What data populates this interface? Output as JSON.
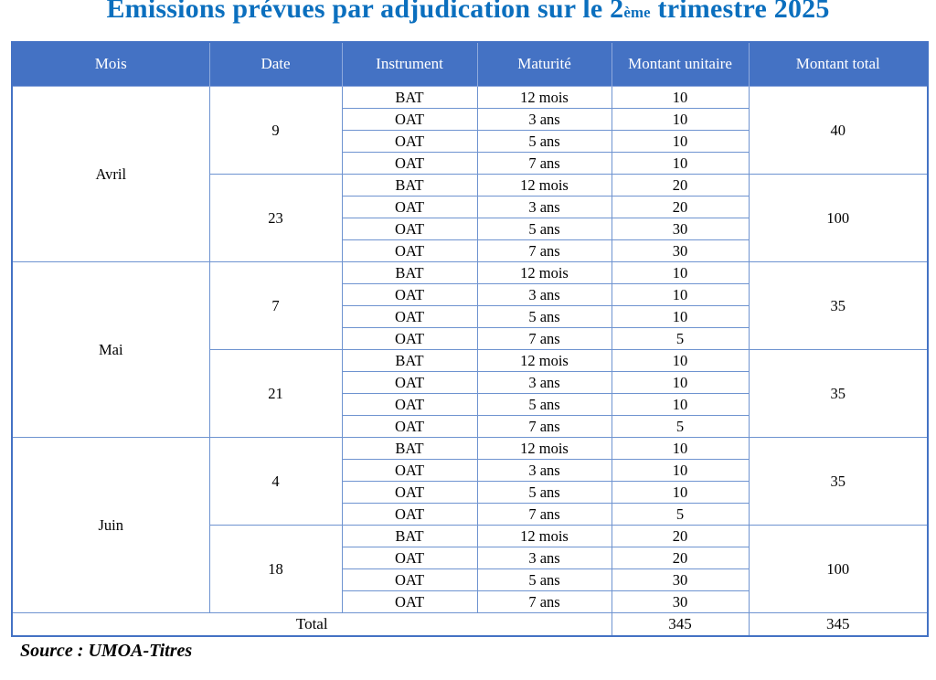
{
  "title": {
    "prefix": "Émissions prévues par adjudication sur le 2",
    "ordinal": "ème",
    "suffix": " trimestre 2025"
  },
  "table": {
    "headers": [
      "Mois",
      "Date",
      "Instrument",
      "Maturité",
      "Montant unitaire",
      "Montant total"
    ],
    "months": [
      {
        "name": "Avril",
        "auctions": [
          {
            "date": "9",
            "total": "40",
            "lines": [
              {
                "instrument": "BAT",
                "maturity": "12 mois",
                "unit_amount": "10"
              },
              {
                "instrument": "OAT",
                "maturity": "3 ans",
                "unit_amount": "10"
              },
              {
                "instrument": "OAT",
                "maturity": "5 ans",
                "unit_amount": "10"
              },
              {
                "instrument": "OAT",
                "maturity": "7 ans",
                "unit_amount": "10"
              }
            ]
          },
          {
            "date": "23",
            "total": "100",
            "lines": [
              {
                "instrument": "BAT",
                "maturity": "12 mois",
                "unit_amount": "20"
              },
              {
                "instrument": "OAT",
                "maturity": "3 ans",
                "unit_amount": "20"
              },
              {
                "instrument": "OAT",
                "maturity": "5 ans",
                "unit_amount": "30"
              },
              {
                "instrument": "OAT",
                "maturity": "7 ans",
                "unit_amount": "30"
              }
            ]
          }
        ]
      },
      {
        "name": "Mai",
        "auctions": [
          {
            "date": "7",
            "total": "35",
            "lines": [
              {
                "instrument": "BAT",
                "maturity": "12 mois",
                "unit_amount": "10"
              },
              {
                "instrument": "OAT",
                "maturity": "3 ans",
                "unit_amount": "10"
              },
              {
                "instrument": "OAT",
                "maturity": "5 ans",
                "unit_amount": "10"
              },
              {
                "instrument": "OAT",
                "maturity": "7 ans",
                "unit_amount": "5"
              }
            ]
          },
          {
            "date": "21",
            "total": "35",
            "lines": [
              {
                "instrument": "BAT",
                "maturity": "12 mois",
                "unit_amount": "10"
              },
              {
                "instrument": "OAT",
                "maturity": "3 ans",
                "unit_amount": "10"
              },
              {
                "instrument": "OAT",
                "maturity": "5 ans",
                "unit_amount": "10"
              },
              {
                "instrument": "OAT",
                "maturity": "7 ans",
                "unit_amount": "5"
              }
            ]
          }
        ]
      },
      {
        "name": "Juin",
        "auctions": [
          {
            "date": "4",
            "total": "35",
            "lines": [
              {
                "instrument": "BAT",
                "maturity": "12 mois",
                "unit_amount": "10"
              },
              {
                "instrument": "OAT",
                "maturity": "3 ans",
                "unit_amount": "10"
              },
              {
                "instrument": "OAT",
                "maturity": "5 ans",
                "unit_amount": "10"
              },
              {
                "instrument": "OAT",
                "maturity": "7 ans",
                "unit_amount": "5"
              }
            ]
          },
          {
            "date": "18",
            "total": "100",
            "lines": [
              {
                "instrument": "BAT",
                "maturity": "12 mois",
                "unit_amount": "20"
              },
              {
                "instrument": "OAT",
                "maturity": "3 ans",
                "unit_amount": "20"
              },
              {
                "instrument": "OAT",
                "maturity": "5 ans",
                "unit_amount": "30"
              },
              {
                "instrument": "OAT",
                "maturity": "7 ans",
                "unit_amount": "30"
              }
            ]
          }
        ]
      }
    ],
    "total_row": {
      "label": "Total",
      "unit_amount_total": "345",
      "grand_total": "345"
    }
  },
  "source": "Source : UMOA-Titres",
  "colors": {
    "title_blue": "#0b6fbe",
    "header_bg": "#4472c4",
    "header_text": "#ffffff",
    "inner_border": "#6e93d0",
    "outer_border": "#4472c4",
    "body_text": "#000000"
  }
}
